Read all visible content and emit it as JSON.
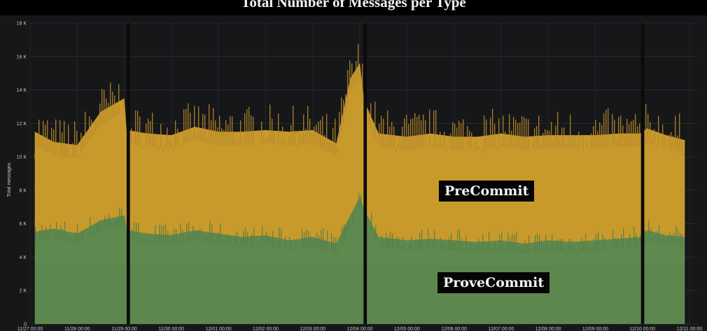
{
  "chart_data": {
    "type": "area",
    "title": "Total Number of Messages per Type",
    "ylabel": "Total messages",
    "xlabel": "",
    "ylim": [
      0,
      18000
    ],
    "y_ticks": [
      "0",
      "2 K",
      "4 K",
      "6 K",
      "8 K",
      "10 K",
      "12 K",
      "14 K",
      "16 K",
      "18 K"
    ],
    "y_tick_values": [
      0,
      2000,
      4000,
      6000,
      8000,
      10000,
      12000,
      14000,
      16000,
      18000
    ],
    "x_ticks": [
      "11/27 00:00",
      "11/28 00:00",
      "11/29 00:00",
      "11/30 00:00",
      "12/01 00:00",
      "12/02 00:00",
      "12/03 00:00",
      "12/04 00:00",
      "12/05 00:00",
      "12/06 00:00",
      "12/07 00:00",
      "12/08 00:00",
      "12/09 00:00",
      "12/10 00:00",
      "12/11 00:00"
    ],
    "grid": true,
    "stacked": true,
    "x_days": [
      0.1,
      0.5,
      1.0,
      1.5,
      2.0,
      2.05,
      2.5,
      3.0,
      3.5,
      4.0,
      4.5,
      5.0,
      5.5,
      6.0,
      6.5,
      6.8,
      7.0,
      7.1,
      7.4,
      8.0,
      8.5,
      9.0,
      9.5,
      10.0,
      10.5,
      11.0,
      11.5,
      12.0,
      12.5,
      12.95,
      13.1,
      13.5,
      13.9
    ],
    "series": [
      {
        "name": "ProveCommit",
        "color": "#5f8a4f",
        "values": [
          5500,
          5700,
          5400,
          6200,
          6500,
          5600,
          5400,
          5300,
          5600,
          5400,
          5200,
          5300,
          5000,
          5200,
          4800,
          6500,
          7600,
          6800,
          5200,
          5000,
          5100,
          5000,
          4900,
          5000,
          4800,
          5000,
          4900,
          5000,
          5100,
          5200,
          5600,
          5300,
          5200
        ]
      },
      {
        "name": "PreCommit",
        "color": "#c89a2c",
        "values": [
          6000,
          5200,
          5300,
          6500,
          7000,
          6000,
          6000,
          6000,
          6200,
          6100,
          6300,
          6300,
          6500,
          6400,
          6000,
          8200,
          8000,
          6500,
          6200,
          6200,
          6300,
          6200,
          6300,
          6400,
          6400,
          6300,
          6400,
          6300,
          6300,
          6200,
          6100,
          6000,
          5800
        ]
      }
    ],
    "gaps": [
      {
        "from": 2.05,
        "to": 2.12
      },
      {
        "from": 7.08,
        "to": 7.15
      },
      {
        "from": 12.97,
        "to": 13.04
      }
    ],
    "annotations": [
      {
        "text": "PreCommit"
      },
      {
        "text": "ProveCommit"
      }
    ]
  }
}
